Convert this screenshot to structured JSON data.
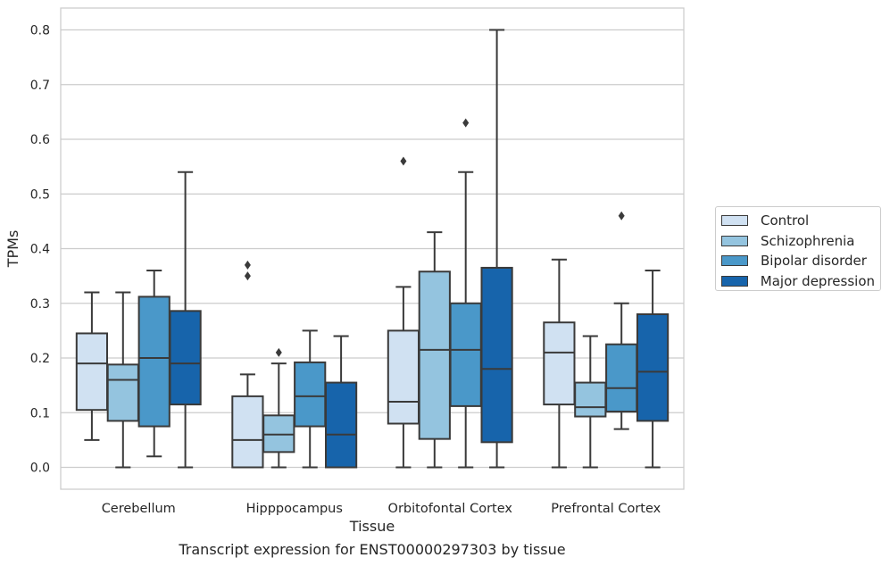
{
  "chart_data": {
    "type": "box",
    "title": "",
    "caption": "Transcript expression for ENST00000297303 by tissue",
    "xlabel": "Tissue",
    "ylabel": "TPMs",
    "ylim": [
      -0.04,
      0.84
    ],
    "yticks": [
      "0.0",
      "0.1",
      "0.2",
      "0.3",
      "0.4",
      "0.5",
      "0.6",
      "0.7",
      "0.8"
    ],
    "categories": [
      "Cerebellum",
      "Hipppocampus",
      "Orbitofontal Cortex",
      "Prefrontal Cortex"
    ],
    "grid": "horizontal",
    "legend_position": "right",
    "series": [
      {
        "name": "Control",
        "color": "#d0e1f2",
        "boxes": [
          {
            "min": 0.05,
            "q1": 0.105,
            "median": 0.19,
            "q3": 0.245,
            "max": 0.32,
            "outliers": []
          },
          {
            "min": 0.0,
            "q1": 0.0,
            "median": 0.05,
            "q3": 0.13,
            "max": 0.17,
            "outliers": [
              0.35,
              0.37
            ]
          },
          {
            "min": 0.0,
            "q1": 0.08,
            "median": 0.12,
            "q3": 0.25,
            "max": 0.33,
            "outliers": [
              0.56
            ]
          },
          {
            "min": 0.0,
            "q1": 0.115,
            "median": 0.21,
            "q3": 0.265,
            "max": 0.38,
            "outliers": []
          }
        ]
      },
      {
        "name": "Schizophrenia",
        "color": "#94c4df",
        "boxes": [
          {
            "min": 0.0,
            "q1": 0.085,
            "median": 0.16,
            "q3": 0.188,
            "max": 0.32,
            "outliers": []
          },
          {
            "min": 0.0,
            "q1": 0.028,
            "median": 0.06,
            "q3": 0.095,
            "max": 0.19,
            "outliers": [
              0.21
            ]
          },
          {
            "min": 0.0,
            "q1": 0.052,
            "median": 0.215,
            "q3": 0.358,
            "max": 0.43,
            "outliers": []
          },
          {
            "min": 0.0,
            "q1": 0.093,
            "median": 0.11,
            "q3": 0.155,
            "max": 0.24,
            "outliers": []
          }
        ]
      },
      {
        "name": "Bipolar disorder",
        "color": "#4a98c9",
        "boxes": [
          {
            "min": 0.02,
            "q1": 0.075,
            "median": 0.2,
            "q3": 0.312,
            "max": 0.36,
            "outliers": []
          },
          {
            "min": 0.0,
            "q1": 0.075,
            "median": 0.13,
            "q3": 0.192,
            "max": 0.25,
            "outliers": []
          },
          {
            "min": 0.0,
            "q1": 0.112,
            "median": 0.215,
            "q3": 0.3,
            "max": 0.54,
            "outliers": [
              0.63
            ]
          },
          {
            "min": 0.07,
            "q1": 0.102,
            "median": 0.145,
            "q3": 0.225,
            "max": 0.3,
            "outliers": [
              0.46
            ]
          }
        ]
      },
      {
        "name": "Major depression",
        "color": "#1764ab",
        "boxes": [
          {
            "min": 0.0,
            "q1": 0.115,
            "median": 0.19,
            "q3": 0.286,
            "max": 0.54,
            "outliers": []
          },
          {
            "min": 0.0,
            "q1": 0.0,
            "median": 0.06,
            "q3": 0.155,
            "max": 0.24,
            "outliers": []
          },
          {
            "min": 0.0,
            "q1": 0.046,
            "median": 0.18,
            "q3": 0.365,
            "max": 0.8,
            "outliers": []
          },
          {
            "min": 0.0,
            "q1": 0.085,
            "median": 0.175,
            "q3": 0.28,
            "max": 0.36,
            "outliers": []
          }
        ]
      }
    ]
  }
}
